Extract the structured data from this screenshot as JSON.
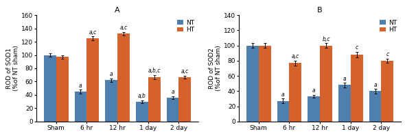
{
  "chart_data": [
    {
      "type": "bar",
      "title": "A",
      "ylabel": "ROD of SOD1\n(%of NT sham)",
      "categories": [
        "Sham",
        "6 hr",
        "12 hr",
        "1 day",
        "2 day"
      ],
      "series": [
        {
          "name": "NT",
          "color": "#4e7faf",
          "values": [
            100,
            45,
            62,
            30,
            36
          ],
          "errors": [
            3,
            3,
            3,
            2,
            2
          ],
          "annotations": [
            null,
            "a",
            "a",
            "a,b",
            "a"
          ]
        },
        {
          "name": "HT",
          "color": "#d4622a",
          "values": [
            97,
            125,
            132,
            67,
            67
          ],
          "errors": [
            3,
            3,
            3,
            3,
            2
          ],
          "annotations": [
            null,
            "a,c",
            "a,c",
            "a,b,c",
            "a,c"
          ]
        }
      ],
      "ylim": [
        0,
        160
      ],
      "yticks": [
        0,
        20,
        40,
        60,
        80,
        100,
        120,
        140,
        160
      ],
      "legend": "upper right"
    },
    {
      "type": "bar",
      "title": "B",
      "ylabel": "ROD of SOD2\n(%of NT sham)",
      "categories": [
        "Sham",
        "6 hr",
        "12 hr",
        "1 day",
        "2 day"
      ],
      "series": [
        {
          "name": "NT",
          "color": "#4e7faf",
          "values": [
            100,
            27,
            33,
            48,
            40
          ],
          "errors": [
            3,
            3,
            2,
            3,
            3
          ],
          "annotations": [
            null,
            "a",
            "a",
            "a",
            "a"
          ]
        },
        {
          "name": "HT",
          "color": "#d4622a",
          "values": [
            100,
            77,
            100,
            88,
            80
          ],
          "errors": [
            3,
            3,
            3,
            4,
            3
          ],
          "annotations": [
            null,
            "a,c",
            "b,c",
            "c",
            "c"
          ]
        }
      ],
      "ylim": [
        0,
        140
      ],
      "yticks": [
        0,
        20,
        40,
        60,
        80,
        100,
        120,
        140
      ],
      "legend": "upper right"
    }
  ]
}
